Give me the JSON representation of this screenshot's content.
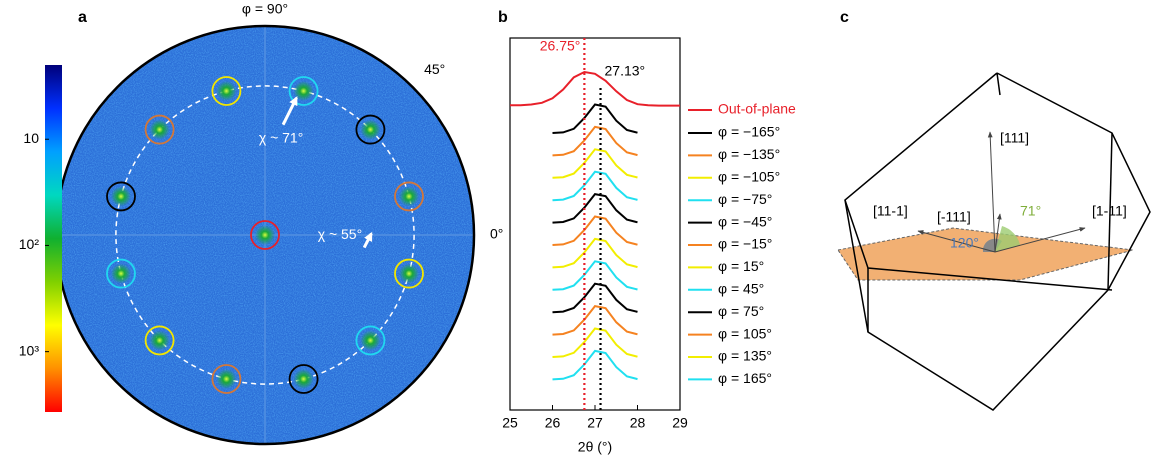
{
  "chart_data": [
    {
      "type": "pole-figure",
      "panel": "a",
      "chi_max": 90,
      "ring": 71,
      "azimuth_labels": [
        {
          "value": 90,
          "label": "φ = 90°"
        },
        {
          "value": 45,
          "label": "45°"
        },
        {
          "value": 0,
          "label": "0°"
        }
      ],
      "annotations": [
        {
          "label": "χ ~ 71°",
          "chi": 71,
          "phi": 77
        },
        {
          "label": "χ ~ 55°",
          "chi": 55,
          "phi": 5
        }
      ],
      "spots": [
        {
          "phi": 0,
          "chi": 0,
          "color": "#e8202a"
        },
        {
          "phi": 105,
          "chi": 71,
          "color": "#f2e600"
        },
        {
          "phi": 75,
          "chi": 71,
          "color": "#20d8f0"
        },
        {
          "phi": 45,
          "chi": 71,
          "color": "#000000"
        },
        {
          "phi": 15,
          "chi": 71,
          "color": "#d2773a"
        },
        {
          "phi": -15,
          "chi": 71,
          "color": "#f2e600"
        },
        {
          "phi": -45,
          "chi": 71,
          "color": "#20d8f0"
        },
        {
          "phi": -75,
          "chi": 71,
          "color": "#000000"
        },
        {
          "phi": -105,
          "chi": 71,
          "color": "#d2773a"
        },
        {
          "phi": -135,
          "chi": 71,
          "color": "#f2e600"
        },
        {
          "phi": -165,
          "chi": 71,
          "color": "#20d8f0"
        },
        {
          "phi": 165,
          "chi": 71,
          "color": "#000000"
        },
        {
          "phi": 135,
          "chi": 71,
          "color": "#d2773a"
        }
      ],
      "colorbar": {
        "log": true,
        "reversed": true,
        "lim": [
          2,
          3700
        ],
        "ticks": [
          10,
          {
            "value": 100,
            "label": "10²"
          },
          {
            "value": 1000,
            "label": "10³"
          }
        ],
        "colormap": [
          "#00007a",
          "#0030ff",
          "#00a0ff",
          "#00d8c0",
          "#10b030",
          "#80d000",
          "#ffff00",
          "#ff9000",
          "#ff0000"
        ]
      }
    },
    {
      "type": "line",
      "panel": "b",
      "xlabel": "2θ (°)",
      "xlim": [
        25,
        29
      ],
      "xticks": [
        25,
        26,
        27,
        28,
        29
      ],
      "x": [
        25,
        25.25,
        25.5,
        25.75,
        26,
        26.25,
        26.5,
        26.75,
        27,
        27.25,
        27.5,
        27.75,
        28,
        28.25,
        28.5,
        28.75,
        29
      ],
      "markers": [
        {
          "value": 26.75,
          "label": "26.75°",
          "color": "#e8202a"
        },
        {
          "value": 27.13,
          "label": "27.13°",
          "color": "#000000"
        }
      ],
      "series": [
        {
          "name": "Out-of-plane",
          "color": "#e8202a",
          "values": [
            0.05,
            0.05,
            0.07,
            0.12,
            0.25,
            0.5,
            0.85,
            1.0,
            0.95,
            0.75,
            0.45,
            0.2,
            0.08,
            0.05,
            0.04,
            0.04,
            0.04
          ]
        },
        {
          "name": "φ = −165°",
          "color": "#000000",
          "values": [
            null,
            null,
            null,
            null,
            0.0,
            0.02,
            0.14,
            0.5,
            0.95,
            0.88,
            0.41,
            0.1,
            0.01,
            null,
            null,
            null,
            null
          ]
        },
        {
          "name": "φ = −135°",
          "color": "#f58220",
          "values": [
            null,
            null,
            null,
            null,
            0.0,
            0.02,
            0.14,
            0.5,
            0.95,
            0.88,
            0.41,
            0.1,
            0.01,
            null,
            null,
            null,
            null
          ]
        },
        {
          "name": "φ = −105°",
          "color": "#f2ee00",
          "values": [
            null,
            null,
            null,
            null,
            0.0,
            0.02,
            0.14,
            0.5,
            0.95,
            0.88,
            0.41,
            0.1,
            0.01,
            null,
            null,
            null,
            null
          ]
        },
        {
          "name": "φ = −75°",
          "color": "#20e0f0",
          "values": [
            null,
            null,
            null,
            null,
            0.0,
            0.02,
            0.14,
            0.5,
            0.95,
            0.88,
            0.41,
            0.1,
            0.01,
            null,
            null,
            null,
            null
          ]
        },
        {
          "name": "φ = −45°",
          "color": "#000000",
          "values": [
            null,
            null,
            null,
            null,
            0.0,
            0.02,
            0.14,
            0.5,
            0.95,
            0.88,
            0.41,
            0.1,
            0.01,
            null,
            null,
            null,
            null
          ]
        },
        {
          "name": "φ = −15°",
          "color": "#f58220",
          "values": [
            null,
            null,
            null,
            null,
            0.0,
            0.02,
            0.14,
            0.5,
            0.95,
            0.88,
            0.41,
            0.1,
            0.01,
            null,
            null,
            null,
            null
          ]
        },
        {
          "name": "φ = 15°",
          "color": "#f2ee00",
          "values": [
            null,
            null,
            null,
            null,
            0.0,
            0.02,
            0.14,
            0.5,
            0.95,
            0.88,
            0.41,
            0.1,
            0.01,
            null,
            null,
            null,
            null
          ]
        },
        {
          "name": "φ = 45°",
          "color": "#20e0f0",
          "values": [
            null,
            null,
            null,
            null,
            0.0,
            0.02,
            0.14,
            0.5,
            0.95,
            0.88,
            0.41,
            0.1,
            0.01,
            null,
            null,
            null,
            null
          ]
        },
        {
          "name": "φ = 75°",
          "color": "#000000",
          "values": [
            null,
            null,
            null,
            null,
            0.0,
            0.02,
            0.14,
            0.5,
            0.95,
            0.88,
            0.41,
            0.1,
            0.01,
            null,
            null,
            null,
            null
          ]
        },
        {
          "name": "φ = 105°",
          "color": "#f58220",
          "values": [
            null,
            null,
            null,
            null,
            0.0,
            0.02,
            0.14,
            0.5,
            0.95,
            0.88,
            0.41,
            0.1,
            0.01,
            null,
            null,
            null,
            null
          ]
        },
        {
          "name": "φ = 135°",
          "color": "#f2ee00",
          "values": [
            null,
            null,
            null,
            null,
            0.0,
            0.02,
            0.14,
            0.5,
            0.95,
            0.88,
            0.41,
            0.1,
            0.01,
            null,
            null,
            null,
            null
          ]
        },
        {
          "name": "φ = 165°",
          "color": "#20e0f0",
          "values": [
            null,
            null,
            null,
            null,
            0.0,
            0.02,
            0.14,
            0.5,
            0.95,
            0.88,
            0.41,
            0.1,
            0.01,
            null,
            null,
            null,
            null
          ]
        }
      ]
    },
    {
      "type": "diagram",
      "panel": "c",
      "labels": [
        "[111]",
        "[11-1]",
        "[-111]",
        "[1-11]",
        "120°",
        "71°"
      ]
    }
  ]
}
